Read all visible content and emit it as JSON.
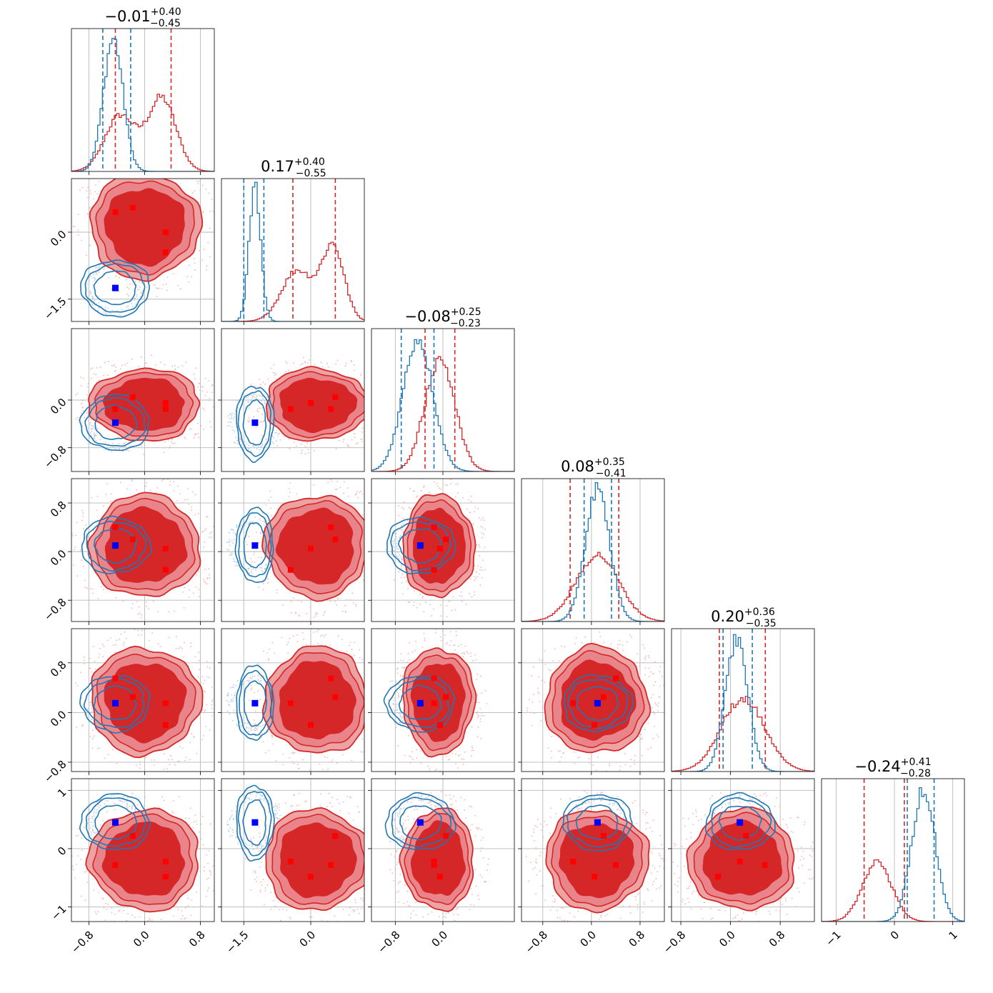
{
  "chart_data": {
    "type": "corner-plot",
    "n_params": 6,
    "grid": true,
    "series": [
      {
        "name": "",
        "color": "#d62728"
      },
      {
        "name": "",
        "color": "#1f77b4"
      }
    ],
    "truth_markers": {
      "red_marker_color": "#ff0000",
      "blue_marker_color": "#0000ff"
    },
    "params": [
      {
        "title": {
          "value": "−0.01",
          "plus": "+0.40",
          "minus": "−0.45"
        },
        "range": [
          -1.05,
          1.0
        ],
        "ticks": [
          -0.8,
          0.0,
          0.8
        ],
        "tick_labels": [
          "−0.8",
          "0.0",
          "0.8"
        ],
        "red": {
          "peaks": [
            {
              "mu": -0.35,
              "sd": 0.22,
              "a": 0.42
            },
            {
              "mu": 0.25,
              "sd": 0.2,
              "a": 0.55
            }
          ],
          "quantiles": [
            -0.42,
            0.38
          ]
        },
        "blue": {
          "peaks": [
            {
              "mu": -0.45,
              "sd": 0.14,
              "a": 1.0
            }
          ],
          "quantiles": [
            -0.6,
            -0.2
          ]
        },
        "red_points": [
          -0.42,
          -0.17,
          0.3,
          0.3
        ],
        "blue_point": -0.42
      },
      {
        "title": {
          "value": "0.17",
          "plus": "+0.40",
          "minus": "−0.55"
        },
        "range": [
          -2.0,
          1.2
        ],
        "ticks": [
          -1.5,
          0.0
        ],
        "tick_labels": [
          "−1.5",
          "0.0"
        ],
        "red": {
          "peaks": [
            {
              "mu": -0.3,
              "sd": 0.35,
              "a": 0.38
            },
            {
              "mu": 0.5,
              "sd": 0.25,
              "a": 0.55
            }
          ],
          "quantiles": [
            -0.4,
            0.55
          ]
        },
        "blue": {
          "peaks": [
            {
              "mu": -1.25,
              "sd": 0.13,
              "a": 1.0
            }
          ],
          "quantiles": [
            -1.5,
            -1.05
          ]
        },
        "red_points": [
          0.45,
          0.55,
          0.0,
          -0.45
        ],
        "blue_point": -1.25
      },
      {
        "title": {
          "value": "−0.08",
          "plus": "+0.25",
          "minus": "−0.23"
        },
        "range": [
          -1.2,
          1.2
        ],
        "ticks": [
          -0.8,
          0.0
        ],
        "tick_labels": [
          "−0.8",
          "0.0"
        ],
        "red": {
          "peaks": [
            {
              "mu": -0.05,
              "sd": 0.25,
              "a": 0.85
            }
          ],
          "quantiles": [
            -0.3,
            0.2
          ]
        },
        "blue": {
          "peaks": [
            {
              "mu": -0.42,
              "sd": 0.25,
              "a": 1.0
            }
          ],
          "quantiles": [
            -0.7,
            -0.15
          ]
        },
        "red_points": [
          -0.15,
          0.05,
          -0.05,
          -0.15
        ],
        "blue_point": -0.38
      },
      {
        "title": {
          "value": "0.08",
          "plus": "+0.35",
          "minus": "−0.41"
        },
        "range": [
          -1.15,
          1.2
        ],
        "ticks": [
          -0.8,
          0.0,
          0.8
        ],
        "tick_labels": [
          "−0.8",
          "0.0",
          "0.8"
        ],
        "red": {
          "peaks": [
            {
              "mu": 0.1,
              "sd": 0.35,
              "a": 0.5
            }
          ],
          "quantiles": [
            -0.35,
            0.45
          ]
        },
        "blue": {
          "peaks": [
            {
              "mu": 0.1,
              "sd": 0.2,
              "a": 1.0
            }
          ],
          "quantiles": [
            -0.12,
            0.33
          ]
        },
        "red_points": [
          0.4,
          0.2,
          0.05,
          -0.3
        ],
        "blue_point": 0.1
      },
      {
        "title": {
          "value": "0.20",
          "plus": "+0.36",
          "minus": "−0.35"
        },
        "range": [
          -0.95,
          1.35
        ],
        "ticks": [
          -0.8,
          0.0,
          0.8
        ],
        "tick_labels": [
          "−0.8",
          "0.0",
          "0.8"
        ],
        "red": {
          "peaks": [
            {
              "mu": 0.2,
              "sd": 0.35,
              "a": 0.55
            }
          ],
          "quantiles": [
            -0.18,
            0.56
          ]
        },
        "blue": {
          "peaks": [
            {
              "mu": 0.1,
              "sd": 0.18,
              "a": 1.0
            }
          ],
          "quantiles": [
            -0.12,
            0.35
          ]
        },
        "red_points": [
          0.55,
          0.25,
          -0.2,
          0.15
        ],
        "blue_point": 0.15
      },
      {
        "title": {
          "value": "−0.24",
          "plus": "+0.41",
          "minus": "−0.28"
        },
        "range": [
          -1.25,
          1.2
        ],
        "ticks": [
          -1,
          0,
          1
        ],
        "tick_labels": [
          "−1",
          "0",
          "1"
        ],
        "red": {
          "peaks": [
            {
              "mu": -0.3,
              "sd": 0.25,
              "a": 0.45
            }
          ],
          "quantiles": [
            -0.52,
            0.17
          ]
        },
        "blue": {
          "peaks": [
            {
              "mu": 0.5,
              "sd": 0.2,
              "a": 1.0
            }
          ],
          "quantiles": [
            0.22,
            0.68
          ]
        },
        "red_points": [
          -0.28,
          0.22,
          -0.48,
          -0.22
        ],
        "blue_point": 0.45
      }
    ]
  }
}
